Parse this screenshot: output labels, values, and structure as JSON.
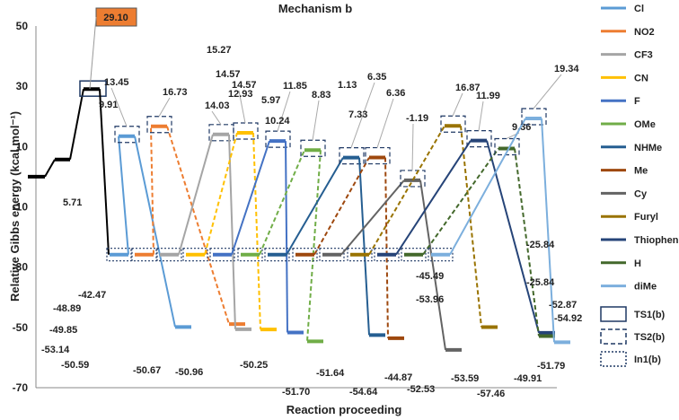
{
  "chart_data": {
    "type": "line",
    "title": "Mechanism b",
    "xlabel": "Reaction proceeding",
    "ylabel": "Relative Gibbs energy (kcal.mol⁻¹)",
    "ylim": [
      -70,
      50
    ],
    "yticks": [
      50,
      30,
      10,
      -10,
      -30,
      -50,
      -70
    ],
    "reactant": {
      "value": 0,
      "intermediate": 5.71,
      "label": "5.71"
    },
    "ts1": {
      "value": 29.1,
      "label": "29.10"
    },
    "in1_level": -25.84,
    "series": [
      {
        "name": "Cl",
        "color": "#5b9bd5",
        "ts2": 13.45,
        "product": -49.85,
        "ts2_label": "13.45",
        "product_label": "-49.85"
      },
      {
        "name": "NO2",
        "color": "#ed7d31",
        "ts2": 16.73,
        "product": -48.89,
        "ts2_label": "16.73",
        "product_label": "-48.89"
      },
      {
        "name": "CF3",
        "color": "#a5a5a5",
        "ts2": 14.03,
        "product": -50.59,
        "ts2_label": "14.03",
        "product_label": "-50.59"
      },
      {
        "name": "CN",
        "color": "#ffc000",
        "ts2": 14.57,
        "product": -50.67,
        "ts2_label": "14.57",
        "product_label": "-50.67"
      },
      {
        "name": "F",
        "color": "#4472c4",
        "ts2": 11.85,
        "product": -51.7,
        "ts2_label": "11.85",
        "product_label": "-51.70"
      },
      {
        "name": "OMe",
        "color": "#70ad47",
        "ts2": 8.83,
        "product": -54.64,
        "ts2_label": "8.83",
        "product_label": "-54.64"
      },
      {
        "name": "NHMe",
        "color": "#255e91",
        "ts2": 6.35,
        "product": -52.53,
        "ts2_label": "6.35",
        "product_label": "-52.53"
      },
      {
        "name": "Me",
        "color": "#9e480e",
        "ts2": 6.36,
        "product": -53.59,
        "ts2_label": "6.36",
        "product_label": "-53.59"
      },
      {
        "name": "Cy",
        "color": "#636363",
        "ts2": -1.19,
        "product": -57.46,
        "ts2_label": "-1.19",
        "product_label": "-57.46"
      },
      {
        "name": "Furyl",
        "color": "#997300",
        "ts2": 16.87,
        "product": -49.91,
        "ts2_label": "16.87",
        "product_label": "-49.91"
      },
      {
        "name": "Thiophene",
        "color": "#264478",
        "ts2": 11.99,
        "product": -51.79,
        "ts2_label": "11.99",
        "product_label": "-51.79"
      },
      {
        "name": "H",
        "color": "#43682b",
        "ts2": 9.36,
        "product": -52.87,
        "ts2_label": "9.36",
        "product_label": "-52.87"
      },
      {
        "name": "diMe",
        "color": "#7cafdd",
        "ts2": 19.34,
        "product": -54.92,
        "ts2_label": "19.34",
        "product_label": "-54.92"
      }
    ],
    "extra_labels": [
      {
        "text": "9.91",
        "value": 9.91
      },
      {
        "text": "14.57",
        "value": 14.57
      },
      {
        "text": "12.93",
        "value": 12.93
      },
      {
        "text": "15.27",
        "value": 15.27
      },
      {
        "text": "10.24",
        "value": 10.24
      },
      {
        "text": "5.97",
        "value": 5.97
      },
      {
        "text": "1.13",
        "value": 1.13
      },
      {
        "text": "7.33",
        "value": 7.33
      },
      {
        "text": "-25.84",
        "value": -25.84
      },
      {
        "text": "-25.84",
        "value": -25.84
      },
      {
        "text": "-42.47",
        "value": -42.47
      },
      {
        "text": "-53.14",
        "value": -53.14
      },
      {
        "text": "-50.96",
        "value": -50.96
      },
      {
        "text": "-50.25",
        "value": -50.25
      },
      {
        "text": "-51.64",
        "value": -51.64
      },
      {
        "text": "-44.87",
        "value": -44.87
      },
      {
        "text": "-45.49",
        "value": -45.49
      },
      {
        "text": "-53.96",
        "value": -53.96
      }
    ],
    "legend_extra": [
      {
        "name": "TS1(b)",
        "style": "solid-box"
      },
      {
        "name": "TS2(b)",
        "style": "dashed-box"
      },
      {
        "name": "In1(b)",
        "style": "dotted-box"
      }
    ],
    "ts1_color": "#ed7d31"
  }
}
